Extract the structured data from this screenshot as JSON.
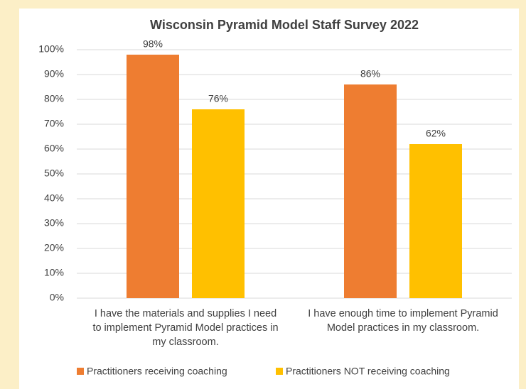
{
  "chart_data": {
    "type": "bar",
    "title": "Wisconsin Pyramid Model Staff Survey 2022",
    "categories": [
      "I have the materials and supplies I need to implement Pyramid Model practices in my classroom.",
      "I have enough time to implement Pyramid Model practices in my classroom."
    ],
    "series": [
      {
        "name": "Practitioners receiving coaching",
        "color": "#ee7d31",
        "values": [
          98,
          86
        ],
        "value_labels": [
          "98%",
          "86%"
        ]
      },
      {
        "name": "Practitioners NOT receiving coaching",
        "color": "#ffc000",
        "values": [
          76,
          62
        ],
        "value_labels": [
          "76%",
          "62%"
        ]
      }
    ],
    "ylim": [
      0,
      100
    ],
    "yticks": [
      {
        "value": 0,
        "label": "0%"
      },
      {
        "value": 10,
        "label": "10%"
      },
      {
        "value": 20,
        "label": "20%"
      },
      {
        "value": 30,
        "label": "30%"
      },
      {
        "value": 40,
        "label": "40%"
      },
      {
        "value": 50,
        "label": "50%"
      },
      {
        "value": 60,
        "label": "60%"
      },
      {
        "value": 70,
        "label": "70%"
      },
      {
        "value": 80,
        "label": "80%"
      },
      {
        "value": 90,
        "label": "90%"
      },
      {
        "value": 100,
        "label": "100%"
      }
    ],
    "grid": true,
    "legend": "bottom"
  }
}
